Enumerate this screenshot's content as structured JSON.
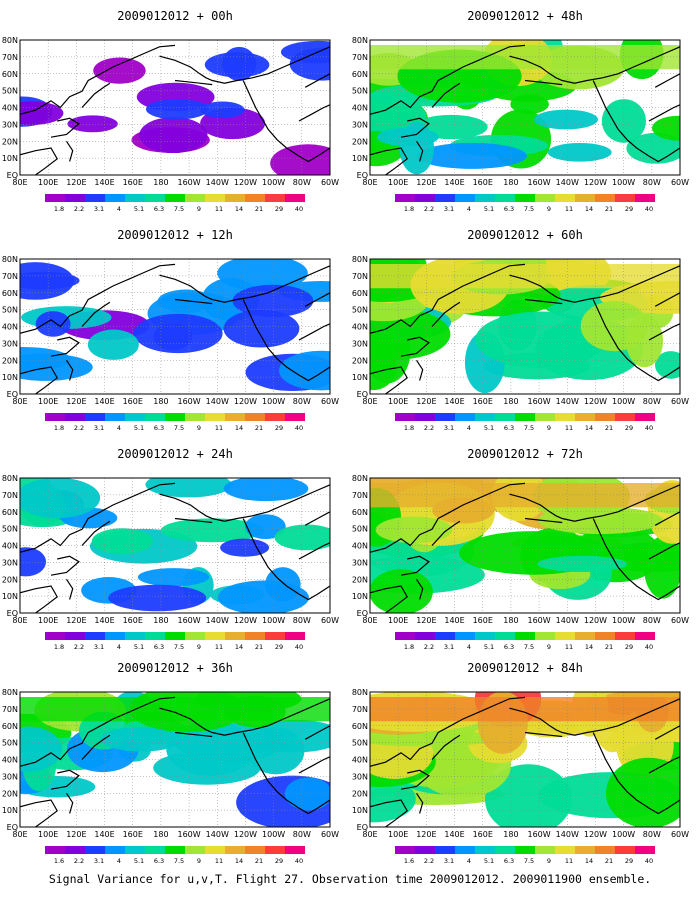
{
  "caption": "Signal Variance for u,v,T. Flight 27. Observation time 2009012012. 2009011900 ensemble.",
  "colorbar": {
    "labels": [
      "1.8",
      "2.2",
      "3.1",
      "4",
      "5.1",
      "6.3",
      "7.5",
      "9",
      "11",
      "14",
      "21",
      "29",
      "40"
    ],
    "first_label_bottom_row": "1.6",
    "colors": [
      "#a000c8",
      "#8200dc",
      "#1e3cff",
      "#0096ff",
      "#00c8c8",
      "#00dc96",
      "#00dc00",
      "#a0e632",
      "#e6dc32",
      "#e6af2d",
      "#f08228",
      "#fa3c3c",
      "#f00082"
    ]
  },
  "lon_labels": [
    "80E",
    "100E",
    "120E",
    "140E",
    "160E",
    "180",
    "160W",
    "140W",
    "120W",
    "100W",
    "80W",
    "60W"
  ],
  "lat_labels": [
    "80N",
    "70N",
    "60N",
    "50N",
    "40N",
    "30N",
    "20N",
    "10N",
    "EQ"
  ],
  "panels": [
    {
      "id": "p00",
      "title": "2009012012 + 00h",
      "intensity": 0.05
    },
    {
      "id": "p48",
      "title": "2009012012 + 48h",
      "intensity": 0.65
    },
    {
      "id": "p12",
      "title": "2009012012 + 12h",
      "intensity": 0.25
    },
    {
      "id": "p60",
      "title": "2009012012 + 60h",
      "intensity": 0.75
    },
    {
      "id": "p24",
      "title": "2009012012 + 24h",
      "intensity": 0.4
    },
    {
      "id": "p72",
      "title": "2009012012 + 72h",
      "intensity": 0.85
    },
    {
      "id": "p36",
      "title": "2009012012 + 36h",
      "intensity": 0.55
    },
    {
      "id": "p84",
      "title": "2009012012 + 84h",
      "intensity": 0.95
    }
  ]
}
